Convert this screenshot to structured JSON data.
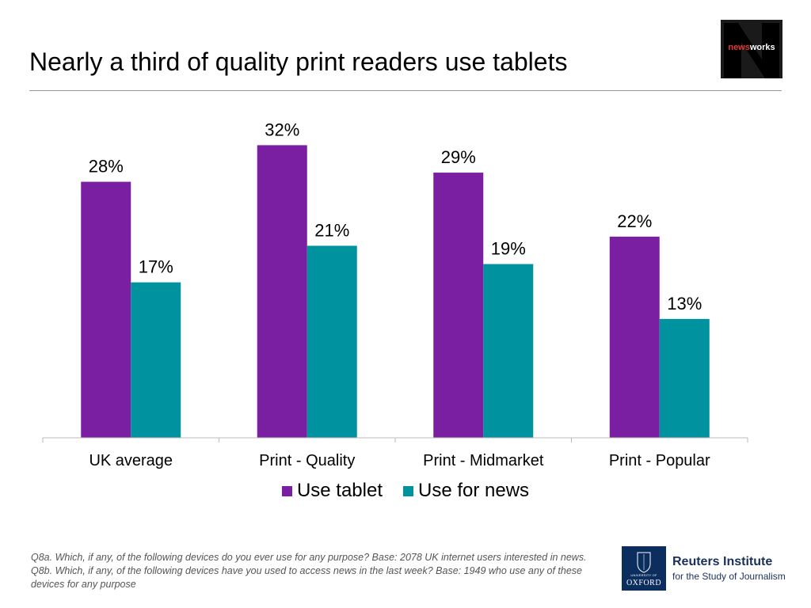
{
  "header": {
    "title": "Nearly a third of quality print readers use tablets",
    "logo_text_prefix": "news",
    "logo_text_suffix": "works"
  },
  "chart_data": {
    "type": "bar",
    "categories": [
      "UK average",
      "Print - Quality",
      "Print - Midmarket",
      "Print - Popular"
    ],
    "series": [
      {
        "name": "Use tablet",
        "values": [
          28,
          32,
          29,
          22
        ],
        "labels": [
          "28%",
          "32%",
          "29%",
          "22%"
        ],
        "color": "#7b1fa2"
      },
      {
        "name": "Use for news",
        "values": [
          17,
          21,
          19,
          13
        ],
        "labels": [
          "17%",
          "21%",
          "19%",
          "13%"
        ],
        "color": "#00929f"
      }
    ],
    "ylim": [
      0,
      35
    ],
    "grid": false,
    "legend_position": "bottom"
  },
  "footnote": "Q8a. Which, if any, of the following devices do you ever use for any purpose? Base: 2078 UK  internet users interested in news. Q8b. Which, if any, of the following devices have you used to access news in the last week? Base: 1949 who use any of these devices for any purpose",
  "institute": {
    "crest_university": "UNIVERSITY OF",
    "crest_oxford": "OXFORD",
    "name": "Reuters Institute",
    "subtitle": "for the Study of Journalism"
  },
  "colors": {
    "tablet": "#7b1fa2",
    "news": "#00929f",
    "brand_dark": "#1b2f5b"
  }
}
